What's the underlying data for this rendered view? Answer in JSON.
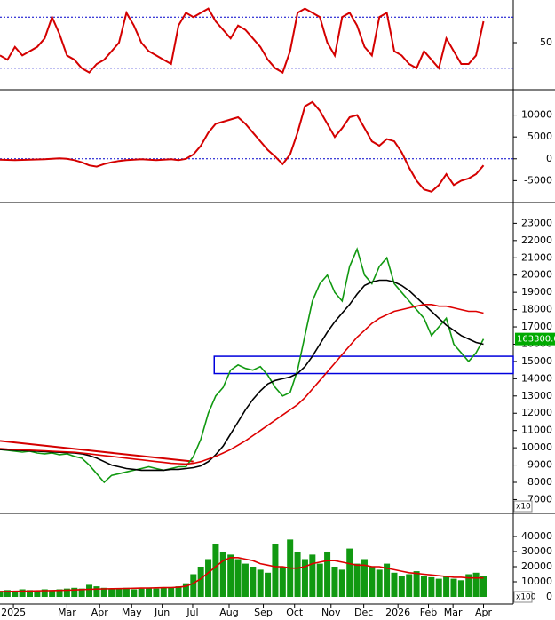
{
  "chart_data": [
    {
      "type": "line",
      "xlim": [
        0,
        69
      ],
      "ylim": [
        0,
        100
      ],
      "yticks": [
        50
      ],
      "levels": [
        20,
        80
      ],
      "level_color": "#0000cc",
      "x": [
        0,
        1,
        2,
        3,
        4,
        5,
        6,
        7,
        8,
        9,
        10,
        11,
        12,
        13,
        14,
        15,
        16,
        17,
        18,
        19,
        20,
        21,
        22,
        23,
        24,
        25,
        26,
        27,
        28,
        29,
        30,
        31,
        32,
        33,
        34,
        35,
        36,
        37,
        38,
        39,
        40,
        41,
        42,
        43,
        44,
        45,
        46,
        47,
        48,
        49,
        50,
        51,
        52,
        53,
        54,
        55,
        56,
        57,
        58,
        59,
        60,
        61,
        62,
        63,
        64,
        65
      ],
      "series": [
        {
          "color": "#d40000",
          "values": [
            35,
            30,
            45,
            35,
            40,
            45,
            55,
            80,
            60,
            35,
            30,
            20,
            15,
            25,
            30,
            40,
            50,
            85,
            70,
            50,
            40,
            35,
            30,
            25,
            70,
            85,
            80,
            85,
            90,
            75,
            65,
            55,
            70,
            65,
            55,
            45,
            30,
            20,
            15,
            40,
            85,
            90,
            85,
            80,
            50,
            35,
            80,
            85,
            70,
            45,
            35,
            80,
            85,
            40,
            35,
            25,
            20,
            40,
            30,
            20,
            55,
            40,
            25,
            25,
            35,
            75
          ]
        }
      ]
    },
    {
      "type": "line",
      "xlim": [
        0,
        69
      ],
      "ylim": [
        -9600,
        15200
      ],
      "yticks": [
        -5000,
        0,
        5000,
        10000
      ],
      "levels": [
        0
      ],
      "level_color": "#0000cc",
      "x": [
        0,
        1,
        2,
        3,
        4,
        5,
        6,
        7,
        8,
        9,
        10,
        11,
        12,
        13,
        14,
        15,
        16,
        17,
        18,
        19,
        20,
        21,
        22,
        23,
        24,
        25,
        26,
        27,
        28,
        29,
        30,
        31,
        32,
        33,
        34,
        35,
        36,
        37,
        38,
        39,
        40,
        41,
        42,
        43,
        44,
        45,
        46,
        47,
        48,
        49,
        50,
        51,
        52,
        53,
        54,
        55,
        56,
        57,
        58,
        59,
        60,
        61,
        62,
        63,
        64,
        65
      ],
      "series": [
        {
          "color": "#d40000",
          "values": [
            -200,
            -250,
            -300,
            -250,
            -200,
            -150,
            -100,
            0,
            100,
            0,
            -300,
            -800,
            -1500,
            -1800,
            -1200,
            -800,
            -500,
            -300,
            -200,
            -100,
            -200,
            -300,
            -200,
            -100,
            -300,
            0,
            1000,
            3000,
            6000,
            8000,
            8500,
            9000,
            9500,
            8000,
            6000,
            4000,
            2000,
            500,
            -1200,
            1000,
            6000,
            12000,
            13000,
            11000,
            8000,
            5000,
            7000,
            9500,
            10000,
            7000,
            4000,
            3000,
            4500,
            4000,
            1500,
            -2000,
            -5000,
            -7000,
            -7500,
            -6000,
            -3500,
            -6000,
            -5000,
            -4500,
            -3500,
            -1500
          ]
        }
      ]
    },
    {
      "type": "line",
      "xlim": [
        0,
        69
      ],
      "ylim": [
        6200,
        24100
      ],
      "yticks": [
        7000,
        8000,
        9000,
        10000,
        11000,
        12000,
        13000,
        14000,
        15000,
        16000,
        17000,
        18000,
        19000,
        20000,
        21000,
        22000,
        23000
      ],
      "unit_label": "x10",
      "last_label": "163300.0",
      "zone": {
        "x": [
          28.8,
          69
        ],
        "y": [
          14300,
          15300
        ],
        "color": "#0000dd"
      },
      "trendline": {
        "x": [
          0,
          26
        ],
        "y": [
          10400,
          9200
        ],
        "color": "#d40000"
      },
      "x": [
        0,
        1,
        2,
        3,
        4,
        5,
        6,
        7,
        8,
        9,
        10,
        11,
        12,
        13,
        14,
        15,
        16,
        17,
        18,
        19,
        20,
        21,
        22,
        23,
        24,
        25,
        26,
        27,
        28,
        29,
        30,
        31,
        32,
        33,
        34,
        35,
        36,
        37,
        38,
        39,
        40,
        41,
        42,
        43,
        44,
        45,
        46,
        47,
        48,
        49,
        50,
        51,
        52,
        53,
        54,
        55,
        56,
        57,
        58,
        59,
        60,
        61,
        62,
        63,
        64,
        65
      ],
      "series": [
        {
          "color": "#119911",
          "values": [
            9900,
            9850,
            9800,
            9750,
            9800,
            9700,
            9650,
            9700,
            9600,
            9650,
            9500,
            9400,
            9000,
            8500,
            8000,
            8400,
            8500,
            8600,
            8700,
            8800,
            8900,
            8800,
            8700,
            8800,
            8900,
            8900,
            9500,
            10500,
            12000,
            13000,
            13500,
            14500,
            14800,
            14600,
            14500,
            14700,
            14200,
            13500,
            13000,
            13200,
            14500,
            16500,
            18500,
            19500,
            20000,
            19000,
            18500,
            20500,
            21500,
            20000,
            19500,
            20500,
            21000,
            19500,
            19000,
            18500,
            18000,
            17500,
            16500,
            17000,
            17500,
            16000,
            15500,
            15000,
            15500,
            16300
          ]
        },
        {
          "color": "#000000",
          "values": [
            9900,
            9880,
            9860,
            9840,
            9820,
            9800,
            9780,
            9760,
            9740,
            9720,
            9700,
            9650,
            9550,
            9400,
            9200,
            9000,
            8900,
            8800,
            8750,
            8700,
            8700,
            8700,
            8700,
            8750,
            8750,
            8800,
            8850,
            8950,
            9200,
            9600,
            10100,
            10800,
            11500,
            12200,
            12800,
            13300,
            13700,
            13900,
            14000,
            14100,
            14300,
            14700,
            15300,
            16000,
            16700,
            17300,
            17800,
            18300,
            18900,
            19400,
            19600,
            19700,
            19700,
            19600,
            19400,
            19100,
            18700,
            18300,
            17900,
            17500,
            17100,
            16800,
            16500,
            16300,
            16100,
            16000
          ]
        },
        {
          "color": "#dd0000",
          "values": [
            9950,
            9920,
            9900,
            9880,
            9860,
            9840,
            9820,
            9800,
            9780,
            9760,
            9740,
            9700,
            9650,
            9600,
            9550,
            9500,
            9450,
            9400,
            9350,
            9300,
            9250,
            9200,
            9150,
            9100,
            9080,
            9060,
            9100,
            9200,
            9350,
            9500,
            9700,
            9900,
            10150,
            10400,
            10700,
            11000,
            11300,
            11600,
            11900,
            12200,
            12500,
            12900,
            13400,
            13900,
            14400,
            14900,
            15400,
            15900,
            16400,
            16800,
            17200,
            17500,
            17700,
            17900,
            18000,
            18100,
            18200,
            18300,
            18300,
            18200,
            18200,
            18100,
            18000,
            17900,
            17900,
            17800
          ]
        }
      ]
    },
    {
      "type": "bar",
      "xlim": [
        0,
        69
      ],
      "ylim": [
        -4700,
        54100
      ],
      "yticks": [
        0,
        10000,
        20000,
        30000,
        40000
      ],
      "unit_label": "x100",
      "xticks": [
        {
          "value": 1.8,
          "label": "2025"
        },
        {
          "value": 9,
          "label": "Mar"
        },
        {
          "value": 13.4,
          "label": "Apr"
        },
        {
          "value": 17.7,
          "label": "May"
        },
        {
          "value": 21.8,
          "label": "Jun"
        },
        {
          "value": 25.9,
          "label": "Jul"
        },
        {
          "value": 30.8,
          "label": "Aug"
        },
        {
          "value": 35.4,
          "label": "Sep"
        },
        {
          "value": 39.6,
          "label": "Oct"
        },
        {
          "value": 44.5,
          "label": "Nov"
        },
        {
          "value": 48.9,
          "label": "Dec"
        },
        {
          "value": 53.5,
          "label": "2026"
        },
        {
          "value": 57.6,
          "label": "Feb"
        },
        {
          "value": 60.9,
          "label": "Mar"
        },
        {
          "value": 65,
          "label": "Apr"
        }
      ],
      "x": [
        0,
        1,
        2,
        3,
        4,
        5,
        6,
        7,
        8,
        9,
        10,
        11,
        12,
        13,
        14,
        15,
        16,
        17,
        18,
        19,
        20,
        21,
        22,
        23,
        24,
        25,
        26,
        27,
        28,
        29,
        30,
        31,
        32,
        33,
        34,
        35,
        36,
        37,
        38,
        39,
        40,
        41,
        42,
        43,
        44,
        45,
        46,
        47,
        48,
        49,
        50,
        51,
        52,
        53,
        54,
        55,
        56,
        57,
        58,
        59,
        60,
        61,
        62,
        63,
        64,
        65
      ],
      "series": [
        {
          "type": "bar",
          "color": "#119911",
          "values": [
            4000,
            4500,
            4000,
            5000,
            4500,
            4000,
            5000,
            4500,
            5000,
            5500,
            6000,
            5500,
            8000,
            7000,
            6000,
            5000,
            5500,
            6000,
            5000,
            5500,
            6000,
            5500,
            6000,
            6500,
            7000,
            9000,
            15000,
            20000,
            25000,
            35000,
            30000,
            28000,
            25000,
            22000,
            20000,
            18000,
            16000,
            35000,
            20000,
            38000,
            30000,
            25000,
            28000,
            22000,
            30000,
            20000,
            18000,
            32000,
            22000,
            25000,
            20000,
            18000,
            22000,
            16000,
            14000,
            15000,
            17000,
            14000,
            13000,
            12000,
            14000,
            12000,
            11000,
            15000,
            16000,
            14000
          ]
        },
        {
          "type": "line",
          "color": "#dd0000",
          "values": [
            3500,
            3600,
            3700,
            3800,
            3900,
            4000,
            4100,
            4200,
            4300,
            4400,
            4600,
            4800,
            5000,
            5200,
            5300,
            5400,
            5500,
            5600,
            5700,
            5800,
            5900,
            6000,
            6100,
            6200,
            6400,
            7000,
            9000,
            12000,
            16000,
            20000,
            24000,
            26000,
            26000,
            25000,
            24000,
            22000,
            21000,
            20000,
            20000,
            19000,
            19000,
            20000,
            22000,
            23000,
            24000,
            24000,
            23000,
            22000,
            21000,
            21000,
            20000,
            20000,
            19000,
            18000,
            17000,
            16000,
            15500,
            15000,
            14500,
            14000,
            13500,
            13000,
            13000,
            12500,
            12500,
            12500
          ]
        }
      ]
    }
  ]
}
